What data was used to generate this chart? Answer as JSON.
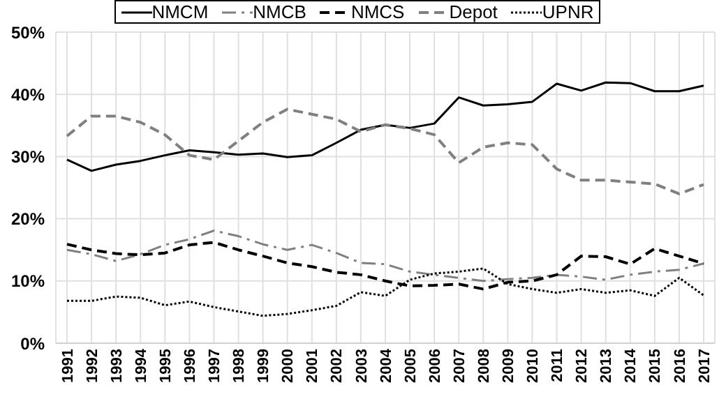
{
  "chart_data": {
    "type": "line",
    "categories": [
      "1991",
      "1992",
      "1993",
      "1994",
      "1995",
      "1996",
      "1997",
      "1998",
      "1999",
      "2000",
      "2001",
      "2002",
      "2003",
      "2004",
      "2005",
      "2006",
      "2007",
      "2008",
      "2009",
      "2010",
      "2011",
      "2012",
      "2013",
      "2014",
      "2015",
      "2016",
      "2017"
    ],
    "series": [
      {
        "name": "NMCM",
        "color": "#000000",
        "line_style": "solid",
        "values": [
          29.5,
          27.7,
          28.7,
          29.3,
          30.2,
          31.0,
          30.7,
          30.3,
          30.5,
          29.9,
          30.2,
          32.2,
          34.3,
          35.1,
          34.6,
          35.3,
          39.5,
          38.2,
          38.4,
          38.8,
          41.7,
          40.6,
          41.9,
          41.8,
          40.5,
          40.5,
          41.4
        ]
      },
      {
        "name": "NMCB",
        "color": "#808080",
        "line_style": "dashdot",
        "values": [
          15.0,
          14.3,
          13.2,
          14.3,
          15.8,
          16.7,
          18.1,
          17.2,
          15.9,
          15.0,
          15.8,
          14.5,
          12.9,
          12.7,
          11.5,
          11.0,
          10.5,
          10.0,
          10.3,
          10.5,
          11.0,
          10.7,
          10.2,
          11.0,
          11.5,
          11.8,
          12.8
        ]
      },
      {
        "name": "NMCS",
        "color": "#000000",
        "line_style": "dashed",
        "values": [
          15.9,
          15.0,
          14.4,
          14.2,
          14.5,
          15.8,
          16.2,
          15.0,
          14.0,
          12.9,
          12.3,
          11.4,
          11.0,
          10.0,
          9.2,
          9.3,
          9.5,
          8.7,
          9.8,
          10.0,
          11.0,
          14.0,
          13.9,
          12.7,
          15.2,
          14.0,
          12.8
        ]
      },
      {
        "name": "Depot",
        "color": "#808080",
        "line_style": "dashed",
        "values": [
          33.3,
          36.5,
          36.5,
          35.5,
          33.5,
          30.2,
          29.5,
          32.5,
          35.5,
          37.6,
          36.8,
          36.0,
          34.0,
          35.1,
          34.5,
          33.5,
          29.0,
          31.5,
          32.2,
          31.9,
          28.0,
          26.2,
          26.2,
          25.9,
          25.6,
          24.0,
          25.5
        ]
      },
      {
        "name": "UPNR",
        "color": "#000000",
        "line_style": "dotted",
        "values": [
          6.8,
          6.8,
          7.5,
          7.3,
          6.1,
          6.7,
          5.8,
          5.1,
          4.4,
          4.7,
          5.3,
          6.0,
          8.2,
          7.6,
          10.2,
          11.2,
          11.5,
          12.0,
          9.5,
          8.7,
          8.1,
          8.7,
          8.1,
          8.5,
          7.6,
          10.5,
          7.7
        ]
      }
    ],
    "ylim": [
      0,
      50
    ],
    "yticks": [
      {
        "value": 0,
        "label": "0%"
      },
      {
        "value": 10,
        "label": "10%"
      },
      {
        "value": 20,
        "label": "20%"
      },
      {
        "value": 30,
        "label": "30%"
      },
      {
        "value": 40,
        "label": "40%"
      },
      {
        "value": 50,
        "label": "50%"
      }
    ],
    "grid": true,
    "legend": "top",
    "marker": "none"
  }
}
